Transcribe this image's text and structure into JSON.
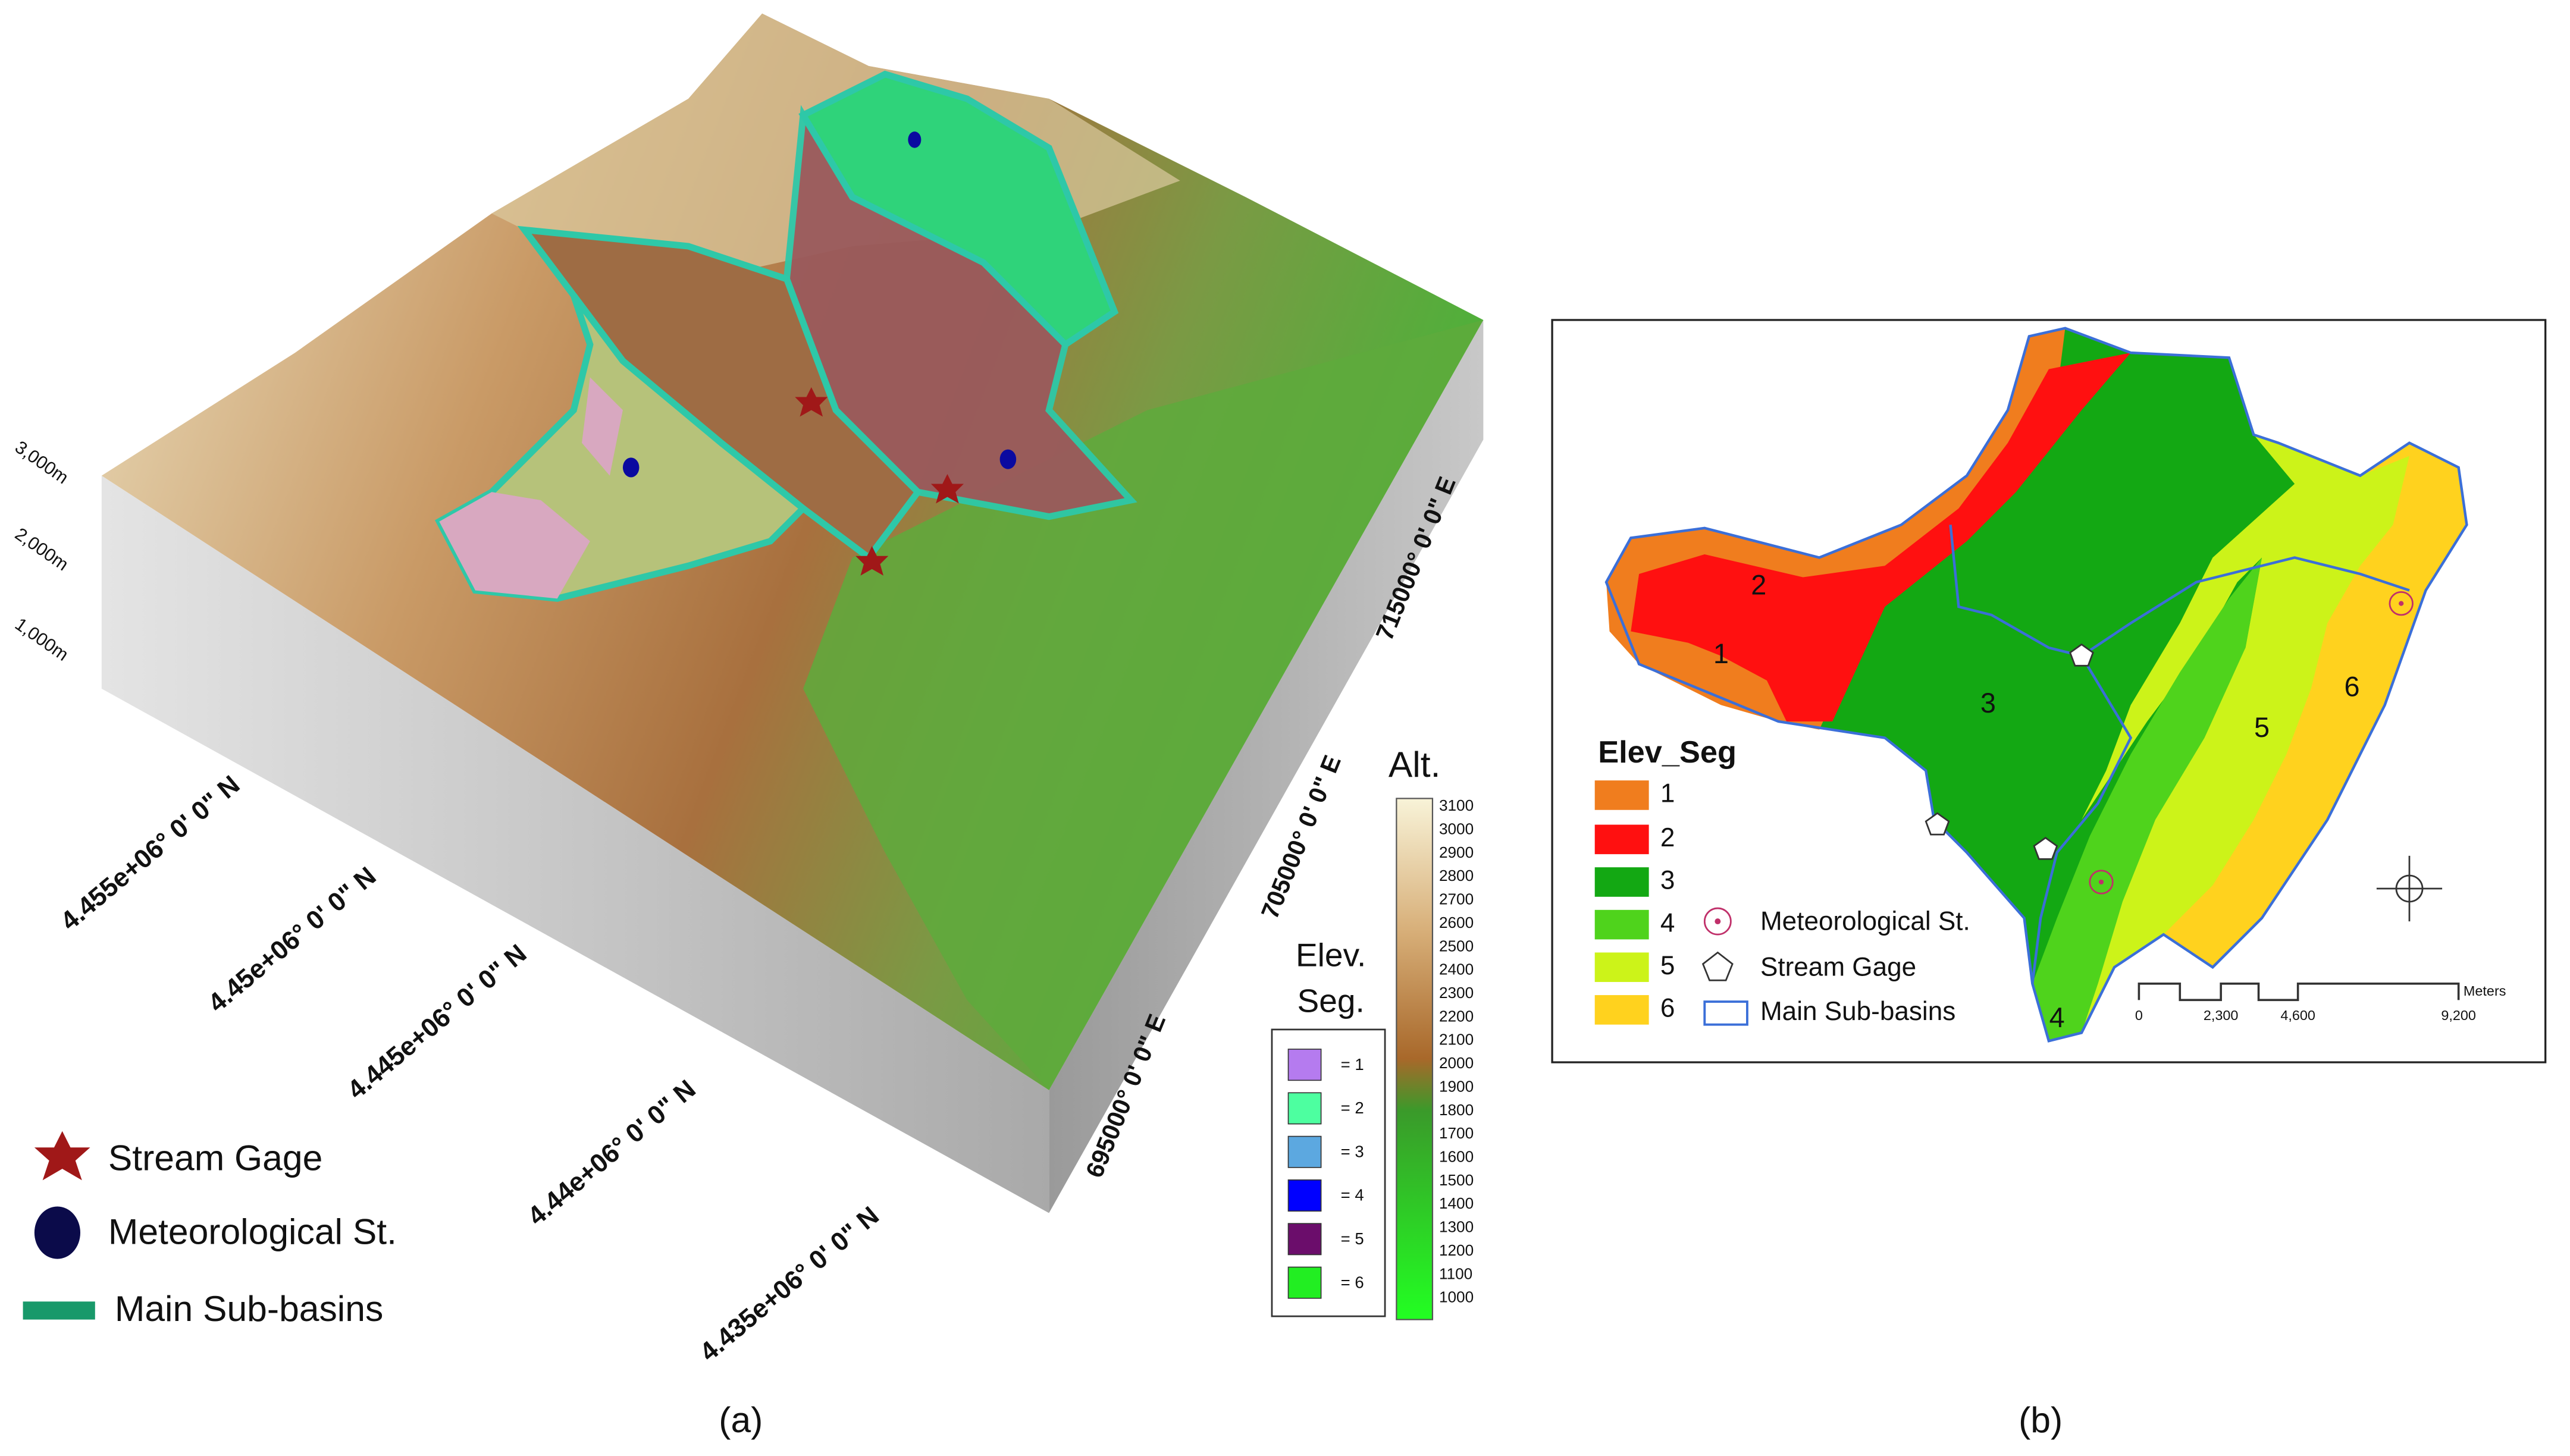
{
  "panel_a": {
    "label": "(a)",
    "elevation_ticks": [
      "3,000m",
      "2,000m",
      "1,000m"
    ],
    "northing_labels": [
      "4.455e+06° 0' 0\" N",
      "4.45e+06° 0' 0\" N",
      "4.445e+06° 0' 0\" N",
      "4.44e+06° 0' 0\" N",
      "4.435e+06° 0' 0\" N"
    ],
    "easting_labels": [
      "715000° 0' 0\" E",
      "705000° 0' 0\" E",
      "695000° 0' 0\" E"
    ],
    "altitude_legend": {
      "title": "Alt.",
      "ticks": [
        3100,
        3000,
        2900,
        2800,
        2700,
        2600,
        2500,
        2400,
        2300,
        2200,
        2100,
        2000,
        1900,
        1800,
        1700,
        1600,
        1500,
        1400,
        1300,
        1200,
        1100,
        1000
      ]
    },
    "segment_legend": {
      "title_lines": [
        "Elev.",
        "Seg."
      ],
      "items": [
        "= 1",
        "= 2",
        "= 3",
        "= 4",
        "= 5",
        "= 6"
      ],
      "colors": [
        "#b57bef",
        "#4dffa0",
        "#5ca8e0",
        "#0000ff",
        "#6b0d6b",
        "#22ee22"
      ]
    },
    "legend": {
      "stream_gage": "Stream Gage",
      "meteorological": "Meteorological St.",
      "sub_basins": "Main Sub-basins"
    }
  },
  "panel_b": {
    "label": "(b)",
    "legend_title": "Elev_Seg",
    "segments": [
      "1",
      "2",
      "3",
      "4",
      "5",
      "6"
    ],
    "colors": [
      "#f07d1e",
      "#ff1010",
      "#13a813",
      "#4fd31c",
      "#ccf319",
      "#ffd21e"
    ],
    "region_labels": [
      "1",
      "2",
      "3",
      "4",
      "5",
      "6"
    ],
    "legend": {
      "meteorological": "Meteorological St.",
      "stream_gage": "Stream Gage",
      "sub_basins": "Main Sub-basins"
    },
    "scale_bar": {
      "labels": [
        "0",
        "2,300",
        "4,600",
        "9,200"
      ],
      "unit": "Meters"
    }
  }
}
